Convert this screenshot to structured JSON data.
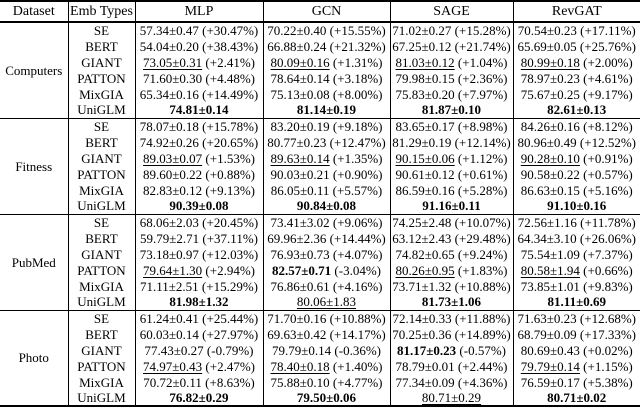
{
  "table": {
    "header": {
      "dataset": "Dataset",
      "emb_types": "Emb Types",
      "models": [
        "MLP",
        "GCN",
        "SAGE",
        "RevGAT"
      ]
    },
    "groups": [
      {
        "dataset": "Computers",
        "rows": [
          {
            "emb": "SE",
            "cells": [
              [
                "57.34±0.47",
                "(+30.47%)",
                ""
              ],
              [
                "70.22±0.40",
                "(+15.55%)",
                ""
              ],
              [
                "71.02±0.27",
                "(+15.28%)",
                ""
              ],
              [
                "70.54±0.23",
                "(+17.11%)",
                ""
              ]
            ]
          },
          {
            "emb": "BERT",
            "cells": [
              [
                "54.04±0.20",
                "(+38.43%)",
                ""
              ],
              [
                "66.88±0.24",
                "(+21.32%)",
                ""
              ],
              [
                "67.25±0.12",
                "(+21.74%)",
                ""
              ],
              [
                "65.69±0.05",
                "(+25.76%)",
                ""
              ]
            ]
          },
          {
            "emb": "GIANT",
            "cells": [
              [
                "73.05±0.31",
                "(+2.41%)",
                "u"
              ],
              [
                "80.09±0.16",
                "(+1.31%)",
                "u"
              ],
              [
                "81.03±0.12",
                "(+1.04%)",
                "u"
              ],
              [
                "80.99±0.18",
                "(+2.00%)",
                "u"
              ]
            ]
          },
          {
            "emb": "PATTON",
            "cells": [
              [
                "71.60±0.30",
                "(+4.48%)",
                ""
              ],
              [
                "78.64±0.14",
                "(+3.18%)",
                ""
              ],
              [
                "79.98±0.15",
                "(+2.36%)",
                ""
              ],
              [
                "78.97±0.23",
                "(+4.61%)",
                ""
              ]
            ]
          },
          {
            "emb": "MixGIA",
            "cells": [
              [
                "65.34±0.16",
                "(+14.49%)",
                ""
              ],
              [
                "75.13±0.08",
                "(+8.00%)",
                ""
              ],
              [
                "75.83±0.20",
                "(+7.97%)",
                ""
              ],
              [
                "75.67±0.25",
                "(+9.17%)",
                ""
              ]
            ]
          },
          {
            "emb": "UniGLM",
            "cells": [
              [
                "74.81±0.14",
                "",
                "b"
              ],
              [
                "81.14±0.19",
                "",
                "b"
              ],
              [
                "81.87±0.10",
                "",
                "b"
              ],
              [
                "82.61±0.13",
                "",
                "b"
              ]
            ]
          }
        ]
      },
      {
        "dataset": "Fitness",
        "rows": [
          {
            "emb": "SE",
            "cells": [
              [
                "78.07±0.18",
                "(+15.78%)",
                ""
              ],
              [
                "83.20±0.19",
                "(+9.18%)",
                ""
              ],
              [
                "83.65±0.17",
                "(+8.98%)",
                ""
              ],
              [
                "84.26±0.16",
                "(+8.12%)",
                ""
              ]
            ]
          },
          {
            "emb": "BERT",
            "cells": [
              [
                "74.92±0.26",
                "(+20.65%)",
                ""
              ],
              [
                "80.77±0.23",
                "(+12.47%)",
                ""
              ],
              [
                "81.29±0.19",
                "(+12.14%)",
                ""
              ],
              [
                "80.96±0.49",
                "(+12.52%)",
                ""
              ]
            ]
          },
          {
            "emb": "GIANT",
            "cells": [
              [
                "89.03±0.07",
                "(+1.53%)",
                "u"
              ],
              [
                "89.63±0.14",
                "(+1.35%)",
                "u"
              ],
              [
                "90.15±0.06",
                "(+1.12%)",
                "u"
              ],
              [
                "90.28±0.10",
                "(+0.91%)",
                "u"
              ]
            ]
          },
          {
            "emb": "PATTON",
            "cells": [
              [
                "89.60±0.22",
                "(+0.88%)",
                ""
              ],
              [
                "90.03±0.21",
                "(+0.90%)",
                ""
              ],
              [
                "90.61±0.12",
                "(+0.61%)",
                ""
              ],
              [
                "90.58±0.22",
                "(+0.57%)",
                ""
              ]
            ]
          },
          {
            "emb": "MixGIA",
            "cells": [
              [
                "82.83±0.12",
                "(+9.13%)",
                ""
              ],
              [
                "86.05±0.11",
                "(+5.57%)",
                ""
              ],
              [
                "86.59±0.16",
                "(+5.28%)",
                ""
              ],
              [
                "86.63±0.15",
                "(+5.16%)",
                ""
              ]
            ]
          },
          {
            "emb": "UniGLM",
            "cells": [
              [
                "90.39±0.08",
                "",
                "b"
              ],
              [
                "90.84±0.08",
                "",
                "b"
              ],
              [
                "91.16±0.11",
                "",
                "b"
              ],
              [
                "91.10±0.16",
                "",
                "b"
              ]
            ]
          }
        ]
      },
      {
        "dataset": "PubMed",
        "rows": [
          {
            "emb": "SE",
            "cells": [
              [
                "68.06±2.03",
                "(+20.45%)",
                ""
              ],
              [
                "73.41±3.02",
                "(+9.06%)",
                ""
              ],
              [
                "74.25±2.48",
                "(+10.07%)",
                ""
              ],
              [
                "72.56±1.16",
                "(+11.78%)",
                ""
              ]
            ]
          },
          {
            "emb": "BERT",
            "cells": [
              [
                "59.79±2.71",
                "(+37.11%)",
                ""
              ],
              [
                "69.96±2.36",
                "(+14.44%)",
                ""
              ],
              [
                "63.12±2.43",
                "(+29.48%)",
                ""
              ],
              [
                "64.34±3.10",
                "(+26.06%)",
                ""
              ]
            ]
          },
          {
            "emb": "GIANT",
            "cells": [
              [
                "73.18±0.97",
                "(+12.03%)",
                ""
              ],
              [
                "76.93±0.73",
                "(+4.07%)",
                ""
              ],
              [
                "74.82±0.65",
                "(+9.24%)",
                ""
              ],
              [
                "75.54±1.09",
                "(+7.37%)",
                ""
              ]
            ]
          },
          {
            "emb": "PATTON",
            "cells": [
              [
                "79.64±1.30",
                "(+2.94%)",
                "u"
              ],
              [
                "82.57±0.71",
                "(-3.04%)",
                "b"
              ],
              [
                "80.26±0.95",
                "(+1.83%)",
                "u"
              ],
              [
                "80.58±1.94",
                "(+0.66%)",
                "u"
              ]
            ]
          },
          {
            "emb": "MixGIA",
            "cells": [
              [
                "71.11±2.51",
                "(+15.29%)",
                ""
              ],
              [
                "76.86±0.61",
                "(+4.16%)",
                ""
              ],
              [
                "73.71±1.32",
                "(+10.88%)",
                ""
              ],
              [
                "73.85±1.01",
                "(+9.83%)",
                ""
              ]
            ]
          },
          {
            "emb": "UniGLM",
            "cells": [
              [
                "81.98±1.32",
                "",
                "b"
              ],
              [
                "80.06±1.83",
                "",
                "u"
              ],
              [
                "81.73±1.06",
                "",
                "b"
              ],
              [
                "81.11±0.69",
                "",
                "b"
              ]
            ]
          }
        ]
      },
      {
        "dataset": "Photo",
        "rows": [
          {
            "emb": "SE",
            "cells": [
              [
                "61.24±0.41",
                "(+25.44%)",
                ""
              ],
              [
                "71.70±0.16",
                "(+10.88%)",
                ""
              ],
              [
                "72.14±0.33",
                "(+11.88%)",
                ""
              ],
              [
                "71.63±0.23",
                "(+12.68%)",
                ""
              ]
            ]
          },
          {
            "emb": "BERT",
            "cells": [
              [
                "60.03±0.14",
                "(+27.97%)",
                ""
              ],
              [
                "69.63±0.42",
                "(+14.17%)",
                ""
              ],
              [
                "70.25±0.36",
                "(+14.89%)",
                ""
              ],
              [
                "68.79±0.09",
                "(+17.33%)",
                ""
              ]
            ]
          },
          {
            "emb": "GIANT",
            "cells": [
              [
                "77.43±0.27",
                "(-0.79%)",
                ""
              ],
              [
                "79.79±0.14",
                "(-0.36%)",
                ""
              ],
              [
                "81.17±0.23",
                "(-0.57%)",
                "b"
              ],
              [
                "80.69±0.43",
                "(+0.02%)",
                ""
              ]
            ]
          },
          {
            "emb": "PATTON",
            "cells": [
              [
                "74.97±0.43",
                "(+2.47%)",
                "u"
              ],
              [
                "78.40±0.18",
                "(+1.40%)",
                "u"
              ],
              [
                "78.79±0.01",
                "(+2.44%)",
                ""
              ],
              [
                "79.79±0.14",
                "(+1.15%)",
                "u"
              ]
            ]
          },
          {
            "emb": "MixGIA",
            "cells": [
              [
                "70.72±0.11",
                "(+8.63%)",
                ""
              ],
              [
                "75.88±0.10",
                "(+4.77%)",
                ""
              ],
              [
                "77.34±0.09",
                "(+4.36%)",
                ""
              ],
              [
                "76.59±0.17",
                "(+5.38%)",
                ""
              ]
            ]
          },
          {
            "emb": "UniGLM",
            "cells": [
              [
                "76.82±0.29",
                "",
                "b"
              ],
              [
                "79.50±0.06",
                "",
                "b"
              ],
              [
                "80.71±0.29",
                "",
                "u"
              ],
              [
                "80.71±0.02",
                "",
                "b"
              ]
            ]
          }
        ]
      }
    ]
  }
}
